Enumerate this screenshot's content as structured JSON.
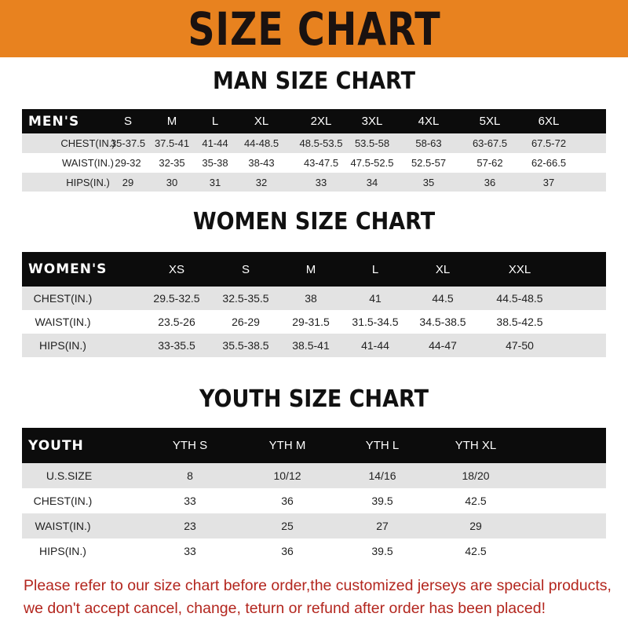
{
  "banner": "SIZE CHART",
  "men": {
    "title": "MAN SIZE CHART",
    "header": [
      "MEN'S",
      "S",
      "M",
      "L",
      "XL",
      "2XL",
      "3XL",
      "4XL",
      "5XL",
      "6XL"
    ],
    "rows": [
      [
        "CHEST(IN.)",
        "35-37.5",
        "37.5-41",
        "41-44",
        "44-48.5",
        "48.5-53.5",
        "53.5-58",
        "58-63",
        "63-67.5",
        "67.5-72"
      ],
      [
        "WAIST(IN.)",
        "29-32",
        "32-35",
        "35-38",
        "38-43",
        "43-47.5",
        "47.5-52.5",
        "52.5-57",
        "57-62",
        "62-66.5"
      ],
      [
        "HIPS(IN.)",
        "29",
        "30",
        "31",
        "32",
        "33",
        "34",
        "35",
        "36",
        "37"
      ]
    ]
  },
  "women": {
    "title": "WOMEN SIZE CHART",
    "header": [
      "WOMEN'S",
      "XS",
      "S",
      "M",
      "L",
      "XL",
      "XXL"
    ],
    "rows": [
      [
        "CHEST(IN.)",
        "29.5-32.5",
        "32.5-35.5",
        "38",
        "41",
        "44.5",
        "44.5-48.5"
      ],
      [
        "WAIST(IN.)",
        "23.5-26",
        "26-29",
        "29-31.5",
        "31.5-34.5",
        "34.5-38.5",
        "38.5-42.5"
      ],
      [
        "HIPS(IN.)",
        "33-35.5",
        "35.5-38.5",
        "38.5-41",
        "41-44",
        "44-47",
        "47-50"
      ]
    ]
  },
  "youth": {
    "title": "YOUTH SIZE CHART",
    "header": [
      "YOUTH",
      "YTH S",
      "YTH M",
      "YTH L",
      "YTH XL"
    ],
    "rows": [
      [
        "U.S.SIZE",
        "8",
        "10/12",
        "14/16",
        "18/20"
      ],
      [
        "CHEST(IN.)",
        "33",
        "36",
        "39.5",
        "42.5"
      ],
      [
        "WAIST(IN.)",
        "23",
        "25",
        "27",
        "29"
      ],
      [
        "HIPS(IN.)",
        "33",
        "36",
        "39.5",
        "42.5"
      ]
    ]
  },
  "note": {
    "line1": "Please refer to our size chart before order,the customized jerseys are special products,",
    "line2": "we don't accept cancel, change, teturn or refund after order has been placed!"
  },
  "colors": {
    "banner": "#e8821f",
    "header_row": "#0c0c0c",
    "stripe": "#e3e3e3",
    "note": "#b3261e"
  }
}
